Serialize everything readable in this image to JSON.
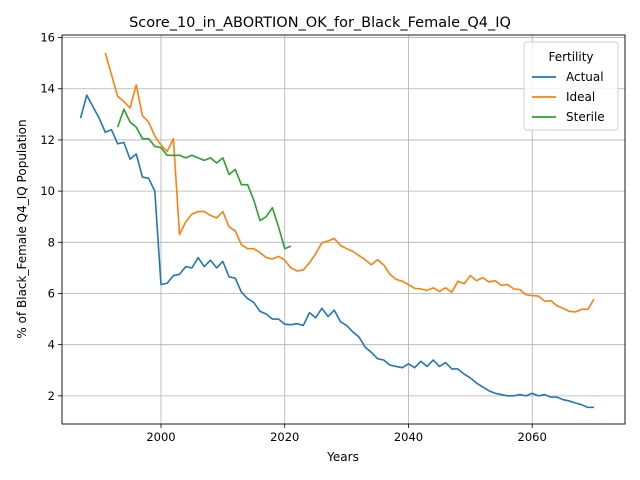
{
  "chart_data": {
    "type": "line",
    "title": "Score_10_in_ABORTION_OK_for_Black_Female_Q4_IQ",
    "xlabel": "Years",
    "ylabel": "% of Black_Female Q4_IQ Population",
    "xlim": [
      1984,
      2075
    ],
    "ylim": [
      0.9,
      16.1
    ],
    "xticks": [
      2000,
      2020,
      2040,
      2060
    ],
    "yticks": [
      2,
      4,
      6,
      8,
      10,
      12,
      14,
      16
    ],
    "grid": true,
    "legend": {
      "title": "Fertility",
      "placement": "top-right"
    },
    "series": [
      {
        "name": "Actual",
        "color": "#1f77b4",
        "points": [
          [
            1987,
            12.85
          ],
          [
            1988,
            13.75
          ],
          [
            1989,
            13.3
          ],
          [
            1990,
            12.85
          ],
          [
            1991,
            12.3
          ],
          [
            1992,
            12.4
          ],
          [
            1993,
            11.85
          ],
          [
            1994,
            11.9
          ],
          [
            1995,
            11.25
          ],
          [
            1996,
            11.45
          ],
          [
            1997,
            10.55
          ],
          [
            1998,
            10.5
          ],
          [
            1999,
            10.0
          ],
          [
            2000,
            6.35
          ],
          [
            2001,
            6.4
          ],
          [
            2002,
            6.7
          ],
          [
            2003,
            6.75
          ],
          [
            2004,
            7.05
          ],
          [
            2005,
            7.0
          ],
          [
            2006,
            7.4
          ],
          [
            2007,
            7.05
          ],
          [
            2008,
            7.3
          ],
          [
            2009,
            7.0
          ],
          [
            2010,
            7.25
          ],
          [
            2011,
            6.65
          ],
          [
            2012,
            6.6
          ],
          [
            2013,
            6.05
          ],
          [
            2014,
            5.8
          ],
          [
            2015,
            5.65
          ],
          [
            2016,
            5.3
          ],
          [
            2017,
            5.2
          ],
          [
            2018,
            5.0
          ],
          [
            2019,
            5.0
          ],
          [
            2020,
            4.8
          ],
          [
            2021,
            4.78
          ],
          [
            2022,
            4.82
          ],
          [
            2023,
            4.75
          ],
          [
            2024,
            5.25
          ],
          [
            2025,
            5.05
          ],
          [
            2026,
            5.42
          ],
          [
            2027,
            5.1
          ],
          [
            2028,
            5.35
          ],
          [
            2029,
            4.9
          ],
          [
            2030,
            4.75
          ],
          [
            2031,
            4.5
          ],
          [
            2032,
            4.3
          ],
          [
            2033,
            3.9
          ],
          [
            2034,
            3.7
          ],
          [
            2035,
            3.45
          ],
          [
            2036,
            3.4
          ],
          [
            2037,
            3.2
          ],
          [
            2038,
            3.15
          ],
          [
            2039,
            3.1
          ],
          [
            2040,
            3.25
          ],
          [
            2041,
            3.1
          ],
          [
            2042,
            3.35
          ],
          [
            2043,
            3.15
          ],
          [
            2044,
            3.4
          ],
          [
            2045,
            3.15
          ],
          [
            2046,
            3.3
          ],
          [
            2047,
            3.05
          ],
          [
            2048,
            3.05
          ],
          [
            2049,
            2.85
          ],
          [
            2050,
            2.7
          ],
          [
            2051,
            2.5
          ],
          [
            2052,
            2.35
          ],
          [
            2053,
            2.2
          ],
          [
            2054,
            2.1
          ],
          [
            2055,
            2.05
          ],
          [
            2056,
            2.0
          ],
          [
            2057,
            2.0
          ],
          [
            2058,
            2.05
          ],
          [
            2059,
            2.0
          ],
          [
            2060,
            2.1
          ],
          [
            2061,
            2.0
          ],
          [
            2062,
            2.05
          ],
          [
            2063,
            1.95
          ],
          [
            2064,
            1.95
          ],
          [
            2065,
            1.85
          ],
          [
            2066,
            1.8
          ],
          [
            2067,
            1.72
          ],
          [
            2068,
            1.65
          ],
          [
            2069,
            1.55
          ],
          [
            2070,
            1.55
          ]
        ]
      },
      {
        "name": "Ideal",
        "color": "#ff7f0e",
        "points": [
          [
            1991,
            15.4
          ],
          [
            1992,
            14.55
          ],
          [
            1993,
            13.7
          ],
          [
            1994,
            13.5
          ],
          [
            1995,
            13.25
          ],
          [
            1996,
            14.15
          ],
          [
            1997,
            12.95
          ],
          [
            1998,
            12.7
          ],
          [
            1999,
            12.15
          ],
          [
            2000,
            11.8
          ],
          [
            2001,
            11.55
          ],
          [
            2002,
            12.05
          ],
          [
            2003,
            8.3
          ],
          [
            2004,
            8.8
          ],
          [
            2005,
            9.1
          ],
          [
            2006,
            9.2
          ],
          [
            2007,
            9.2
          ],
          [
            2008,
            9.05
          ],
          [
            2009,
            8.95
          ],
          [
            2010,
            9.2
          ],
          [
            2011,
            8.6
          ],
          [
            2012,
            8.45
          ],
          [
            2013,
            7.9
          ],
          [
            2014,
            7.75
          ],
          [
            2015,
            7.75
          ],
          [
            2016,
            7.6
          ],
          [
            2017,
            7.4
          ],
          [
            2018,
            7.35
          ],
          [
            2019,
            7.45
          ],
          [
            2020,
            7.3
          ],
          [
            2021,
            7.0
          ],
          [
            2022,
            6.88
          ],
          [
            2023,
            6.92
          ],
          [
            2024,
            7.2
          ],
          [
            2025,
            7.55
          ],
          [
            2026,
            7.98
          ],
          [
            2027,
            8.05
          ],
          [
            2028,
            8.15
          ],
          [
            2029,
            7.88
          ],
          [
            2030,
            7.75
          ],
          [
            2031,
            7.65
          ],
          [
            2032,
            7.48
          ],
          [
            2033,
            7.32
          ],
          [
            2034,
            7.12
          ],
          [
            2035,
            7.32
          ],
          [
            2036,
            7.12
          ],
          [
            2037,
            6.75
          ],
          [
            2038,
            6.55
          ],
          [
            2039,
            6.48
          ],
          [
            2040,
            6.35
          ],
          [
            2041,
            6.2
          ],
          [
            2042,
            6.18
          ],
          [
            2043,
            6.12
          ],
          [
            2044,
            6.22
          ],
          [
            2045,
            6.08
          ],
          [
            2046,
            6.22
          ],
          [
            2047,
            6.05
          ],
          [
            2048,
            6.48
          ],
          [
            2049,
            6.38
          ],
          [
            2050,
            6.7
          ],
          [
            2051,
            6.5
          ],
          [
            2052,
            6.62
          ],
          [
            2053,
            6.45
          ],
          [
            2054,
            6.5
          ],
          [
            2055,
            6.32
          ],
          [
            2056,
            6.35
          ],
          [
            2057,
            6.18
          ],
          [
            2058,
            6.15
          ],
          [
            2059,
            5.95
          ],
          [
            2060,
            5.92
          ],
          [
            2061,
            5.9
          ],
          [
            2062,
            5.7
          ],
          [
            2063,
            5.72
          ],
          [
            2064,
            5.52
          ],
          [
            2065,
            5.42
          ],
          [
            2066,
            5.3
          ],
          [
            2067,
            5.28
          ],
          [
            2068,
            5.38
          ],
          [
            2069,
            5.38
          ],
          [
            2070,
            5.78
          ]
        ]
      },
      {
        "name": "Sterile",
        "color": "#2ca02c",
        "points": [
          [
            1993,
            12.5
          ],
          [
            1994,
            13.2
          ],
          [
            1995,
            12.7
          ],
          [
            1996,
            12.5
          ],
          [
            1997,
            12.05
          ],
          [
            1998,
            12.05
          ],
          [
            1999,
            11.75
          ],
          [
            2000,
            11.7
          ],
          [
            2001,
            11.4
          ],
          [
            2002,
            11.4
          ],
          [
            2003,
            11.4
          ],
          [
            2004,
            11.3
          ],
          [
            2005,
            11.4
          ],
          [
            2006,
            11.3
          ],
          [
            2007,
            11.2
          ],
          [
            2008,
            11.3
          ],
          [
            2009,
            11.1
          ],
          [
            2010,
            11.3
          ],
          [
            2011,
            10.65
          ],
          [
            2012,
            10.85
          ],
          [
            2013,
            10.25
          ],
          [
            2014,
            10.25
          ],
          [
            2015,
            9.65
          ],
          [
            2016,
            8.85
          ],
          [
            2017,
            9.0
          ],
          [
            2018,
            9.35
          ],
          [
            2019,
            8.6
          ],
          [
            2020,
            7.75
          ],
          [
            2021,
            7.85
          ]
        ]
      }
    ]
  }
}
